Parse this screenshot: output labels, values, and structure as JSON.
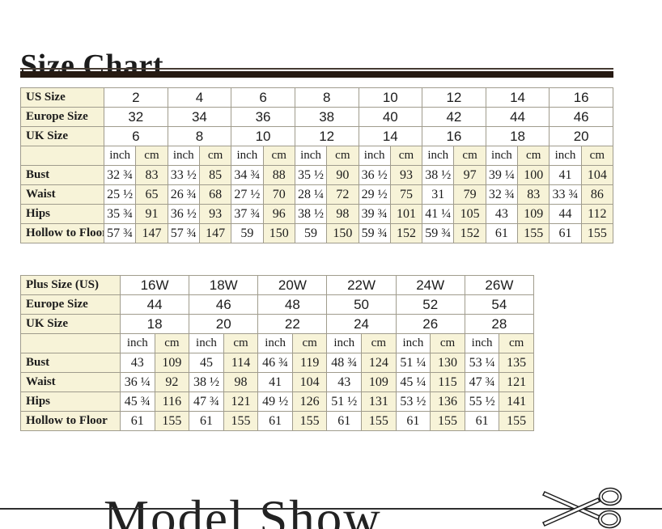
{
  "header": {
    "title": "Size Chart"
  },
  "footer": {
    "title": "Model Show"
  },
  "colors": {
    "cream": "#f7f3d8",
    "border": "#a09c8d",
    "bar": "#261a12",
    "text": "#1c1c1c"
  },
  "icons": {
    "scissors": "scissors-cut-here"
  },
  "tables": [
    {
      "name": "regular-sizes",
      "pairs": 8,
      "unit_pair": [
        "inch",
        "cm"
      ],
      "size_rows": [
        {
          "label": "US Size",
          "values": [
            "2",
            "4",
            "6",
            "8",
            "10",
            "12",
            "14",
            "16"
          ]
        },
        {
          "label": "Europe Size",
          "values": [
            "32",
            "34",
            "36",
            "38",
            "40",
            "42",
            "44",
            "46"
          ]
        },
        {
          "label": "UK Size",
          "values": [
            "6",
            "8",
            "10",
            "12",
            "14",
            "16",
            "18",
            "20"
          ]
        }
      ],
      "measure_rows": [
        {
          "label": "Bust",
          "values": [
            "32 ¾",
            "83",
            "33 ½",
            "85",
            "34 ¾",
            "88",
            "35 ½",
            "90",
            "36 ½",
            "93",
            "38 ½",
            "97",
            "39 ¼",
            "100",
            "41",
            "104"
          ]
        },
        {
          "label": "Waist",
          "values": [
            "25 ½",
            "65",
            "26 ¾",
            "68",
            "27 ½",
            "70",
            "28 ¼",
            "72",
            "29 ½",
            "75",
            "31",
            "79",
            "32 ¾",
            "83",
            "33 ¾",
            "86"
          ]
        },
        {
          "label": "Hips",
          "values": [
            "35 ¾",
            "91",
            "36 ½",
            "93",
            "37 ¾",
            "96",
            "38 ½",
            "98",
            "39 ¾",
            "101",
            "41 ¼",
            "105",
            "43",
            "109",
            "44",
            "112"
          ]
        },
        {
          "label": "Hollow to Floor",
          "values": [
            "57 ¾",
            "147",
            "57 ¾",
            "147",
            "59",
            "150",
            "59",
            "150",
            "59 ¾",
            "152",
            "59 ¾",
            "152",
            "61",
            "155",
            "61",
            "155"
          ]
        }
      ]
    },
    {
      "name": "plus-sizes",
      "pairs": 6,
      "unit_pair": [
        "inch",
        "cm"
      ],
      "size_rows": [
        {
          "label": "Plus Size (US)",
          "values": [
            "16W",
            "18W",
            "20W",
            "22W",
            "24W",
            "26W"
          ]
        },
        {
          "label": "Europe Size",
          "values": [
            "44",
            "46",
            "48",
            "50",
            "52",
            "54"
          ]
        },
        {
          "label": "UK Size",
          "values": [
            "18",
            "20",
            "22",
            "24",
            "26",
            "28"
          ]
        }
      ],
      "measure_rows": [
        {
          "label": "Bust",
          "values": [
            "43",
            "109",
            "45",
            "114",
            "46 ¾",
            "119",
            "48 ¾",
            "124",
            "51 ¼",
            "130",
            "53 ¼",
            "135"
          ]
        },
        {
          "label": "Waist",
          "values": [
            "36 ¼",
            "92",
            "38 ½",
            "98",
            "41",
            "104",
            "43",
            "109",
            "45 ¼",
            "115",
            "47 ¾",
            "121"
          ]
        },
        {
          "label": "Hips",
          "values": [
            "45 ¾",
            "116",
            "47 ¾",
            "121",
            "49 ½",
            "126",
            "51 ½",
            "131",
            "53 ½",
            "136",
            "55 ½",
            "141"
          ]
        },
        {
          "label": "Hollow to Floor",
          "values": [
            "61",
            "155",
            "61",
            "155",
            "61",
            "155",
            "61",
            "155",
            "61",
            "155",
            "61",
            "155"
          ]
        }
      ]
    }
  ]
}
